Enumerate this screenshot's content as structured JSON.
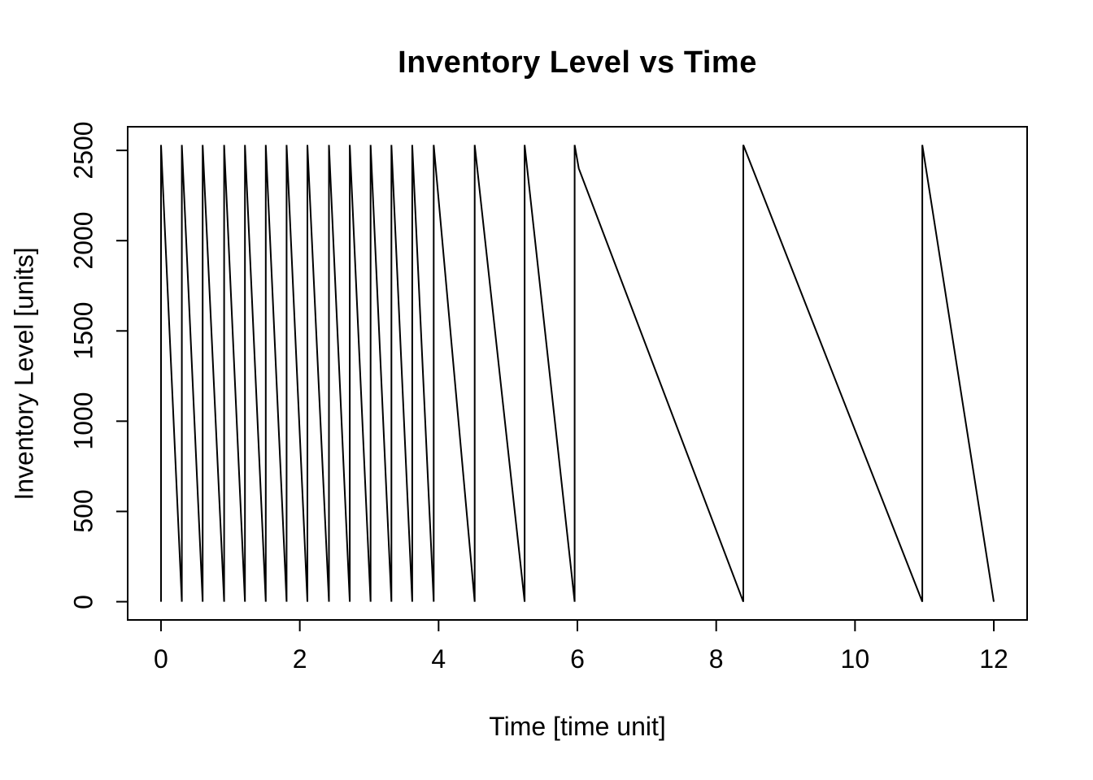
{
  "page": {
    "background_color": "#ffffff",
    "text_color": "#000000"
  },
  "chart_data": {
    "type": "line",
    "title": "Inventory Level vs Time",
    "xlabel": "Time [time unit]",
    "ylabel": "Inventory Level [units]",
    "x_ticks": [
      0,
      2,
      4,
      6,
      8,
      10,
      12
    ],
    "y_ticks": [
      0,
      500,
      1000,
      1500,
      2000,
      2500
    ],
    "xlim": [
      -0.48,
      12.48
    ],
    "ylim": [
      -101,
      2631
    ],
    "grid": false,
    "legend": null,
    "line_color": "#000000",
    "line_width": 2,
    "pattern": "sawtooth",
    "order_quantity_units": 2530,
    "replenishment_times": [
      0,
      0.3,
      0.6,
      0.91,
      1.21,
      1.51,
      1.81,
      2.11,
      2.42,
      2.72,
      3.02,
      3.32,
      3.62,
      3.93,
      4.52,
      5.24,
      5.96,
      8.39,
      10.97
    ],
    "end_time": 12,
    "points": [
      [
        0,
        0
      ],
      [
        0,
        2530
      ],
      [
        0.3,
        0
      ],
      [
        0.3,
        2530
      ],
      [
        0.6,
        0
      ],
      [
        0.6,
        2530
      ],
      [
        0.91,
        0
      ],
      [
        0.91,
        2530
      ],
      [
        1.21,
        0
      ],
      [
        1.21,
        2530
      ],
      [
        1.51,
        0
      ],
      [
        1.51,
        2530
      ],
      [
        1.81,
        0
      ],
      [
        1.81,
        2530
      ],
      [
        2.11,
        0
      ],
      [
        2.11,
        2530
      ],
      [
        2.42,
        0
      ],
      [
        2.42,
        2530
      ],
      [
        2.72,
        0
      ],
      [
        2.72,
        2530
      ],
      [
        3.02,
        0
      ],
      [
        3.02,
        2530
      ],
      [
        3.32,
        0
      ],
      [
        3.32,
        2530
      ],
      [
        3.62,
        0
      ],
      [
        3.62,
        2530
      ],
      [
        3.93,
        0
      ],
      [
        3.93,
        2530
      ],
      [
        4.52,
        0
      ],
      [
        4.52,
        2530
      ],
      [
        5.24,
        0
      ],
      [
        5.24,
        2530
      ],
      [
        5.96,
        0
      ],
      [
        5.96,
        2530
      ],
      [
        6.02,
        2400
      ],
      [
        8.39,
        0
      ],
      [
        8.39,
        2530
      ],
      [
        10.97,
        0
      ],
      [
        10.97,
        2530
      ],
      [
        12,
        0
      ]
    ]
  }
}
